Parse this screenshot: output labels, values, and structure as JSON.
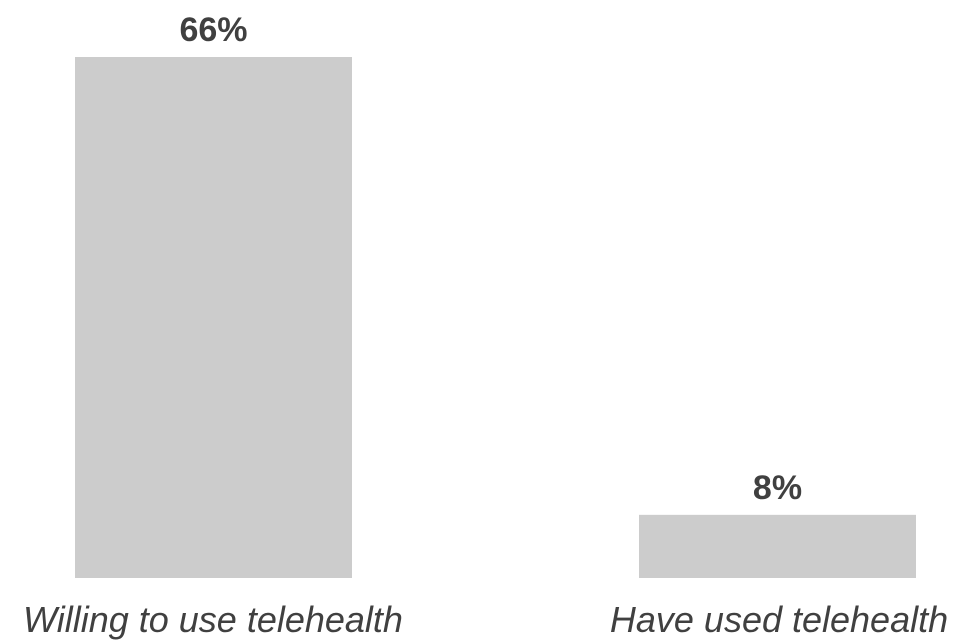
{
  "chart_data": {
    "type": "bar",
    "categories": [
      "Willing to use telehealth",
      "Have used telehealth"
    ],
    "values": [
      66,
      8
    ],
    "data_labels": [
      "66%",
      "8%"
    ],
    "ylim": [
      0,
      66
    ],
    "grid": false,
    "legend": "none",
    "colors": {
      "bar": "#cccccc",
      "label": "#404040"
    }
  }
}
